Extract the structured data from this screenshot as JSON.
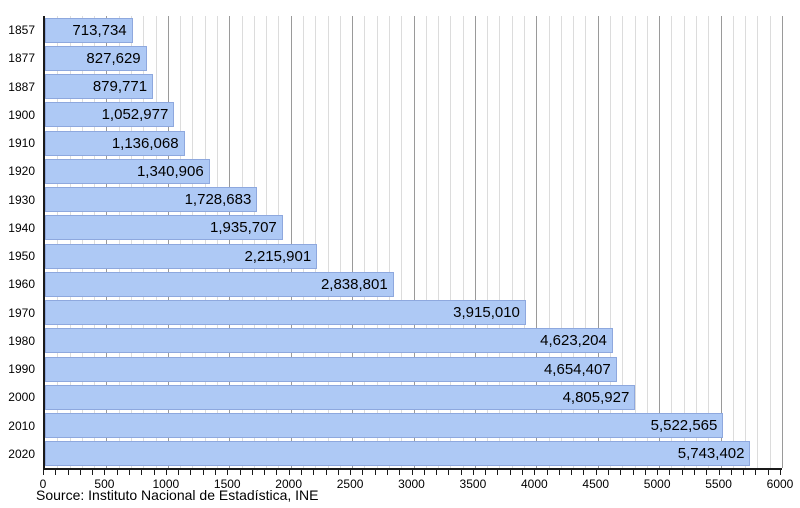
{
  "chart_data": {
    "type": "bar",
    "orientation": "horizontal",
    "categories": [
      "1857",
      "1877",
      "1887",
      "1900",
      "1910",
      "1920",
      "1930",
      "1940",
      "1950",
      "1960",
      "1970",
      "1980",
      "1990",
      "2000",
      "2010",
      "2020"
    ],
    "values": [
      713734,
      827629,
      879771,
      1052977,
      1136068,
      1340906,
      1728683,
      1935707,
      2215901,
      2838801,
      3915010,
      4623204,
      4654407,
      4805927,
      5522565,
      5743402
    ],
    "value_labels": [
      "713,734",
      "827,629",
      "879,771",
      "1,052,977",
      "1,136,068",
      "1,340,906",
      "1,728,683",
      "1,935,707",
      "2,215,901",
      "2,838,801",
      "3,915,010",
      "4,623,204",
      "4,654,407",
      "4,805,927",
      "5,522,565",
      "5,743,402"
    ],
    "title": "",
    "xlabel": "",
    "ylabel": "",
    "x_axis": {
      "min": 0,
      "max": 6000000,
      "major_tick_step": 500000,
      "minor_tick_step": 100000,
      "tick_labels": [
        "0",
        "500",
        "1000",
        "1500",
        "2000",
        "2500",
        "3000",
        "3500",
        "4000",
        "4500",
        "5000",
        "5500",
        "6000"
      ]
    },
    "grid": true,
    "legend": false
  },
  "source_note": "Source: Instituto Nacional de Estadística, INE",
  "colors": {
    "bar_fill": "#aec9f5",
    "bar_border": "#8ea8de",
    "grid_minor": "#dcdcdc",
    "grid_major": "#9a9a9a",
    "axis": "#1a1a1a",
    "text": "#000000",
    "background": "#ffffff"
  }
}
